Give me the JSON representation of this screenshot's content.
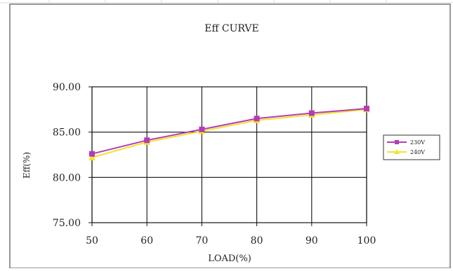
{
  "chart_data": {
    "type": "line",
    "title": "Eff CURVE",
    "xlabel": "LOAD(%)",
    "ylabel": "Eff(%)",
    "x": [
      50,
      60,
      70,
      80,
      90,
      100
    ],
    "x_tick_labels": [
      "50",
      "60",
      "70",
      "80",
      "90",
      "100"
    ],
    "y_tick_values": [
      75,
      80,
      85,
      90
    ],
    "y_tick_labels": [
      "75.00",
      "80.00",
      "85.00",
      "90.00"
    ],
    "xlim": [
      50,
      100
    ],
    "ylim": [
      75,
      90
    ],
    "grid": true,
    "legend_position": "right",
    "series": [
      {
        "name": "230V",
        "color": "#b43cb4",
        "marker": "square",
        "values": [
          82.6,
          84.1,
          85.3,
          86.5,
          87.1,
          87.6
        ]
      },
      {
        "name": "240V",
        "color": "#f2e233",
        "marker": "triangle",
        "values": [
          82.2,
          83.9,
          85.1,
          86.3,
          86.9,
          87.5
        ]
      }
    ]
  }
}
